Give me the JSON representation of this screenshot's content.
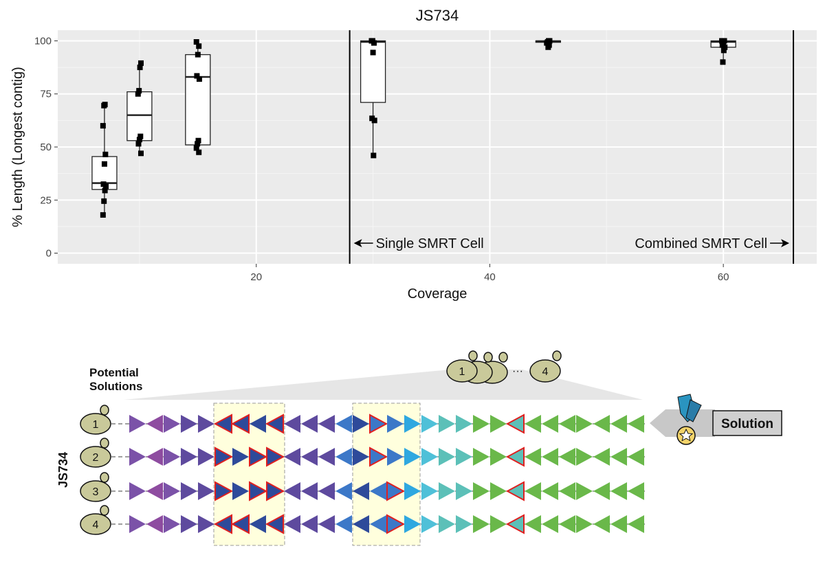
{
  "chart_data": {
    "type": "box",
    "title": "JS734",
    "xlabel": "Coverage",
    "ylabel": "% Length (Longest contig)",
    "xlim": [
      3,
      68
    ],
    "ylim": [
      -5,
      105
    ],
    "xticks": [
      20,
      40,
      60
    ],
    "yticks": [
      0,
      25,
      50,
      75,
      100
    ],
    "grid": true,
    "boxes": [
      {
        "x": 7,
        "q1": 30,
        "median": 33,
        "q3": 45.5,
        "whisker_low": 18,
        "whisker_high": 70,
        "points": [
          18,
          24.5,
          29.5,
          31.5,
          32.5,
          42,
          46.5,
          60,
          69.5,
          70
        ]
      },
      {
        "x": 10,
        "q1": 53,
        "median": 65,
        "q3": 76,
        "whisker_low": 47,
        "whisker_high": 90,
        "points": [
          47,
          51.5,
          53.5,
          55,
          75,
          76.5,
          87.5,
          89.5
        ]
      },
      {
        "x": 15,
        "q1": 51,
        "median": 83,
        "q3": 93.5,
        "whisker_low": 47.5,
        "whisker_high": 100,
        "points": [
          47.5,
          49.5,
          51.5,
          53,
          82,
          83.5,
          93.5,
          97.5,
          99.5
        ]
      },
      {
        "x": 30,
        "q1": 71,
        "median": 99.5,
        "q3": 100,
        "whisker_low": 46,
        "whisker_high": 100,
        "points": [
          46,
          62.5,
          63.5,
          94.5,
          99,
          100,
          100
        ]
      },
      {
        "x": 45,
        "q1": 99.3,
        "median": 99.8,
        "q3": 100,
        "whisker_low": 97,
        "whisker_high": 100,
        "points": [
          97,
          98,
          99,
          99.5,
          100,
          100
        ]
      },
      {
        "x": 60,
        "q1": 97,
        "median": 99.5,
        "q3": 100,
        "whisker_low": 90,
        "whisker_high": 100,
        "points": [
          90,
          95.5,
          97,
          98,
          99.5,
          100,
          100
        ]
      }
    ],
    "vlines": [
      28,
      66
    ],
    "annotations": [
      {
        "text": "Single SMRT Cell",
        "x": 28,
        "arrow": "left"
      },
      {
        "text": "Combined SMRT Cell",
        "x": 66,
        "arrow": "right"
      }
    ]
  },
  "diagram": {
    "potential_label_1": "Potential",
    "potential_label_2": "Solutions",
    "row_axis_label": "JS734",
    "solution_label": "Solution",
    "top_cluster": [
      "1",
      "4"
    ],
    "top_ellipsis": "···",
    "rows": [
      "1",
      "2",
      "3",
      "4"
    ],
    "colors": {
      "purple": "#7B52A8",
      "magenta_purple": "#8E4CA0",
      "dark_purple": "#5E4A9E",
      "navy": "#2E4A9A",
      "mid_blue": "#3C78C8",
      "blue": "#3A8FD0",
      "cyan": "#2FA8E0",
      "light_cyan": "#4FC0D8",
      "teal": "#5CC0B8",
      "green": "#6AB84A",
      "cell_fill": "#C9C99A",
      "highlight": "#FFFFDD",
      "red_outline": "#E02020",
      "medal_ribbon": "#2A94C0",
      "medal": "#F2D36A"
    }
  }
}
